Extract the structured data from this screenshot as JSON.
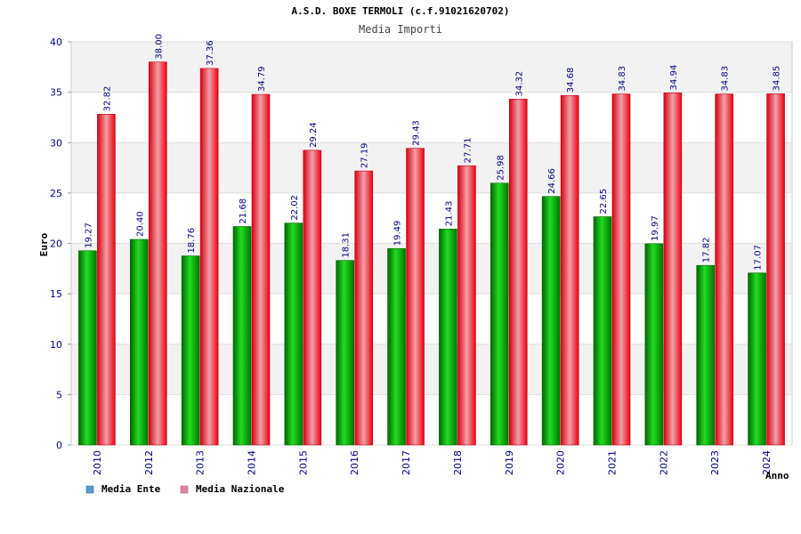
{
  "chart_data": {
    "type": "bar",
    "title": "A.S.D. BOXE TERMOLI (c.f.91021620702)",
    "subtitle": "Media Importi",
    "ylabel": "Euro",
    "xlabel": "Anno",
    "ylim": [
      0,
      40
    ],
    "yticks": [
      "0",
      "5",
      "10",
      "15",
      "20",
      "25",
      "30",
      "35",
      "40"
    ],
    "grid": true,
    "legend_position": "bottom-left",
    "categories": [
      "2010",
      "2012",
      "2013",
      "2014",
      "2015",
      "2016",
      "2017",
      "2018",
      "2019",
      "2020",
      "2021",
      "2022",
      "2023",
      "2024"
    ],
    "series": [
      {
        "name": "Media Ente",
        "legend_color": "#5b9bd5",
        "bar_color": "#00aa00",
        "values": [
          19.27,
          20.4,
          18.76,
          21.68,
          22.02,
          18.31,
          19.49,
          21.43,
          25.98,
          24.66,
          22.65,
          19.97,
          17.82,
          17.07
        ],
        "labels": [
          "19.27",
          "20.40",
          "18.76",
          "21.68",
          "22.02",
          "18.31",
          "19.49",
          "21.43",
          "25.98",
          "24.66",
          "22.65",
          "19.97",
          "17.82",
          "17.07"
        ]
      },
      {
        "name": "Media Nazionale",
        "legend_color": "#dd88aa",
        "bar_color": "#ee1122",
        "values": [
          32.82,
          38.0,
          37.36,
          34.79,
          29.24,
          27.19,
          29.43,
          27.71,
          34.32,
          34.68,
          34.83,
          34.94,
          34.83,
          34.85
        ],
        "labels": [
          "32.82",
          "38.00",
          "37.36",
          "34.79",
          "29.24",
          "27.19",
          "29.43",
          "27.71",
          "34.32",
          "34.68",
          "34.83",
          "34.94",
          "34.83",
          "34.85"
        ]
      }
    ]
  }
}
